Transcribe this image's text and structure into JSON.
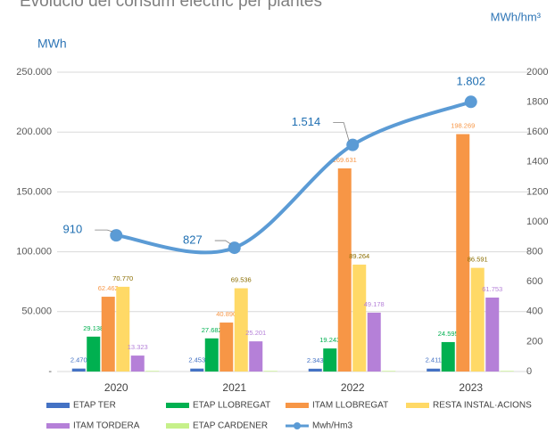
{
  "chart_data": {
    "type": "bar",
    "title": "Evolució del consum elèctric per plantes",
    "y_label": "MWh",
    "y2_label": "MWh/hm³",
    "categories": [
      "2020",
      "2021",
      "2022",
      "2023"
    ],
    "ylim": [
      0,
      250000
    ],
    "yticks": [
      {
        "value": 0,
        "label": "-"
      },
      {
        "value": 50000,
        "label": "50.000"
      },
      {
        "value": 100000,
        "label": "100.000"
      },
      {
        "value": 150000,
        "label": "150.000"
      },
      {
        "value": 200000,
        "label": "200.000"
      },
      {
        "value": 250000,
        "label": "250.000"
      }
    ],
    "y2lim": [
      0,
      2000
    ],
    "y2ticks": [
      0,
      200,
      400,
      600,
      800,
      1000,
      1200,
      1400,
      1600,
      1800,
      2000
    ],
    "grid": true,
    "series": [
      {
        "name": "ETAP TER",
        "color": "#4472c4",
        "values": [
          2470,
          2453,
          2343,
          2411
        ],
        "value_labels": [
          "2.470",
          "2.453",
          "2.343",
          "2.411"
        ]
      },
      {
        "name": "ETAP LLOBREGAT",
        "color": "#00b050",
        "values": [
          29138,
          27682,
          19243,
          24595
        ],
        "value_labels": [
          "29.138",
          "27.682",
          "19.243",
          "24.595"
        ]
      },
      {
        "name": "ITAM LLOBREGAT",
        "color": "#f79646",
        "values": [
          62462,
          40890,
          169631,
          198269
        ],
        "value_labels": [
          "62.462",
          "40.890",
          "169.631",
          "198.269"
        ]
      },
      {
        "name": "RESTA INSTAL·ACIONS",
        "color": "#ffd966",
        "values": [
          70770,
          69536,
          89264,
          86591
        ],
        "value_labels": [
          "70.770",
          "69.536",
          "89.264",
          "86.591"
        ]
      },
      {
        "name": "ITAM TORDERA",
        "color": "#b580d8",
        "values": [
          13323,
          25201,
          49178,
          61753
        ],
        "value_labels": [
          "13.323",
          "25.201",
          "49.178",
          "61.753"
        ]
      },
      {
        "name": "ETAP CARDENER",
        "color": "#c6f08a",
        "values": [
          500,
          500,
          500,
          500
        ]
      },
      {
        "name": "Mwh/Hm3",
        "type": "line",
        "axis": "y2",
        "color": "#5b9bd5",
        "values": [
          910,
          827,
          1514,
          1802
        ],
        "value_labels": [
          "910",
          "827",
          "1.514",
          "1.802"
        ]
      }
    ]
  }
}
